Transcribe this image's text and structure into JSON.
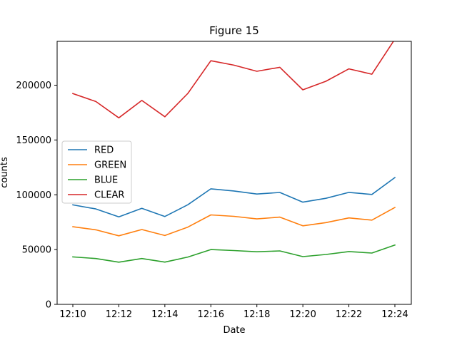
{
  "chart_data": {
    "type": "line",
    "title": "Figure 15",
    "xlabel": "Date",
    "ylabel": "counts",
    "x": [
      "12:10",
      "12:11",
      "12:12",
      "12:13",
      "12:14",
      "12:15",
      "12:16",
      "12:17",
      "12:18",
      "12:19",
      "12:20",
      "12:21",
      "12:22",
      "12:23",
      "12:24"
    ],
    "xticks": [
      "12:10",
      "12:12",
      "12:14",
      "12:16",
      "12:18",
      "12:20",
      "12:22",
      "12:24"
    ],
    "ylim": [
      0,
      240000
    ],
    "yticks": [
      0,
      50000,
      100000,
      150000,
      200000
    ],
    "ytick_labels": [
      "0",
      "50000",
      "100000",
      "150000",
      "200000"
    ],
    "grid": false,
    "legend_position": "center-left",
    "series": [
      {
        "name": "RED",
        "color": "#1f77b4",
        "values": [
          90800,
          87100,
          79900,
          87600,
          80200,
          90900,
          105400,
          103500,
          100700,
          102100,
          93300,
          96800,
          102200,
          100300,
          115700
        ]
      },
      {
        "name": "GREEN",
        "color": "#ff7f0e",
        "values": [
          70800,
          68000,
          62600,
          68300,
          62800,
          70500,
          81600,
          80300,
          78000,
          79600,
          71700,
          74600,
          78900,
          76900,
          88400
        ]
      },
      {
        "name": "BLUE",
        "color": "#2ca02c",
        "values": [
          43300,
          41800,
          38500,
          41800,
          38600,
          43200,
          50000,
          49100,
          48000,
          48800,
          43600,
          45500,
          48200,
          46800,
          54100
        ]
      },
      {
        "name": "CLEAR",
        "color": "#d62728",
        "values": [
          192300,
          185100,
          170200,
          186100,
          171200,
          192500,
          222300,
          218300,
          212700,
          216300,
          195800,
          203600,
          214900,
          210000,
          242000
        ]
      }
    ]
  }
}
